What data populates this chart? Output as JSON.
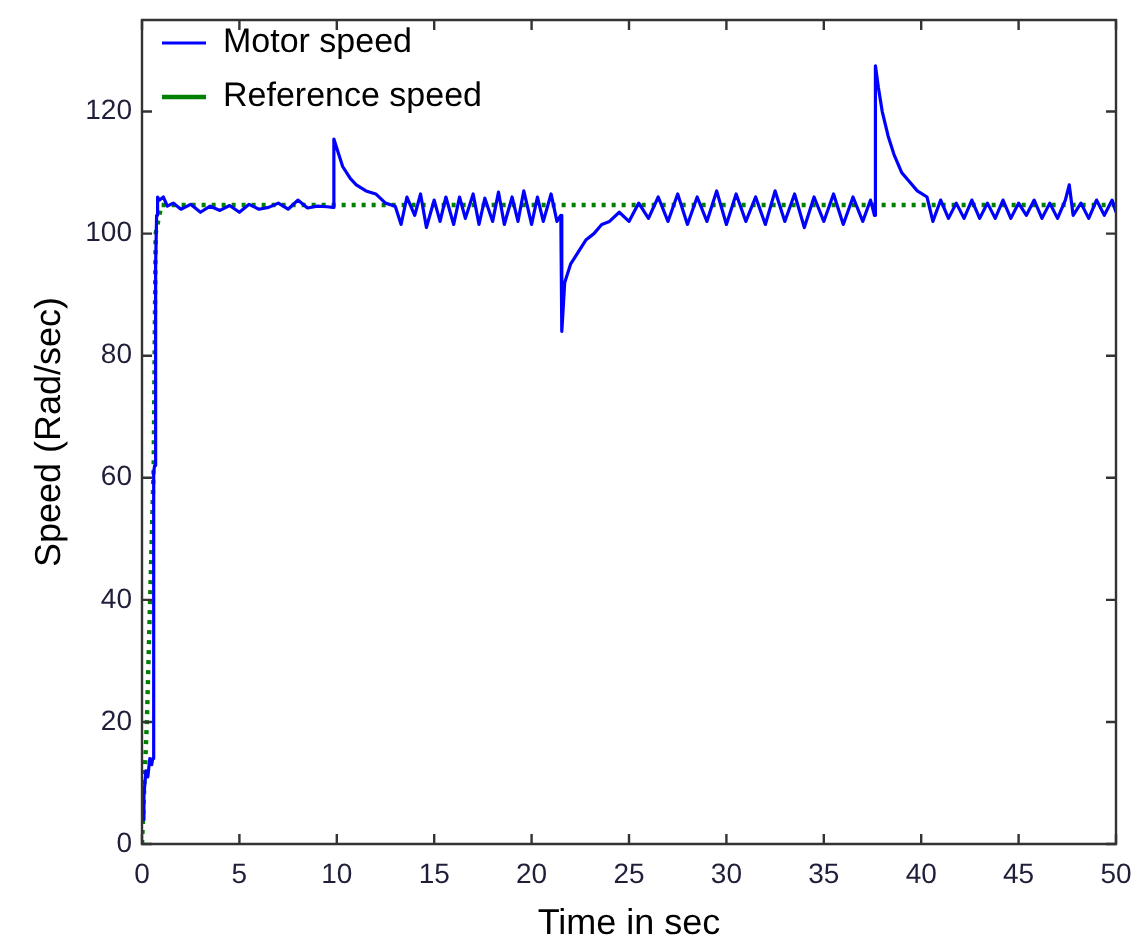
{
  "chart_data": {
    "type": "line",
    "xlabel": "Time in sec",
    "ylabel": "Speed (Rad/sec)",
    "xlim": [
      0,
      50
    ],
    "xticks": [
      0,
      5,
      10,
      15,
      20,
      25,
      30,
      35,
      40,
      45,
      50
    ],
    "ylim": [
      0,
      135
    ],
    "yticks": [
      0,
      20,
      40,
      60,
      80,
      100,
      120
    ],
    "grid": false,
    "legend": "top left",
    "series": [
      {
        "name": "Motor speed",
        "color": "#0000ff",
        "line_style": "solid",
        "x": [
          0,
          0.1,
          0.2,
          0.3,
          0.4,
          0.5,
          0.55,
          0.6,
          0.65,
          0.7,
          0.75,
          0.8,
          0.9,
          1.1,
          1.3,
          1.6,
          2,
          2.5,
          3,
          3.5,
          4,
          4.5,
          5,
          5.5,
          6,
          6.5,
          7,
          7.5,
          8,
          8.5,
          9,
          9.5,
          9.8,
          9.85,
          10,
          10.3,
          10.7,
          11,
          11.5,
          12,
          12.5,
          13,
          13.3,
          13.6,
          14,
          14.3,
          14.6,
          15,
          15.3,
          15.6,
          16,
          16.3,
          16.6,
          17,
          17.3,
          17.6,
          18,
          18.3,
          18.6,
          19,
          19.3,
          19.6,
          20,
          20.3,
          20.6,
          21,
          21.3,
          21.5,
          21.55,
          21.7,
          22,
          22.4,
          22.8,
          23.2,
          23.6,
          24,
          24.5,
          25,
          25.5,
          26,
          26.5,
          27,
          27.5,
          28,
          28.5,
          29,
          29.5,
          30,
          30.5,
          31,
          31.5,
          32,
          32.5,
          33,
          33.5,
          34,
          34.5,
          35,
          35.5,
          36,
          36.5,
          37,
          37.4,
          37.6,
          37.65,
          37.8,
          38,
          38.3,
          38.6,
          39,
          39.4,
          39.8,
          40.3,
          40.6,
          41,
          41.4,
          41.8,
          42.2,
          42.6,
          43,
          43.4,
          43.8,
          44.2,
          44.6,
          45,
          45.4,
          45.8,
          46.2,
          46.6,
          47,
          47.4,
          47.6,
          47.8,
          48.2,
          48.6,
          49,
          49.4,
          49.8,
          50
        ],
        "values": [
          4,
          8,
          12,
          11,
          14,
          13,
          14,
          61,
          62,
          95,
          103,
          106,
          105.5,
          106,
          104.5,
          105,
          104,
          104.8,
          103.5,
          104.5,
          103.8,
          104.6,
          103.5,
          104.8,
          104,
          104.3,
          105,
          104,
          105.5,
          104.2,
          104.5,
          104.4,
          104.3,
          115.5,
          114,
          111,
          109,
          108,
          107,
          106.5,
          105,
          104.5,
          101.5,
          106,
          103,
          106.5,
          101,
          105.5,
          102,
          106,
          101.5,
          106,
          102.5,
          106.5,
          101.5,
          105.8,
          102,
          106.8,
          101.5,
          106,
          102,
          107,
          101.5,
          106,
          102,
          106.5,
          102,
          103,
          84,
          92,
          95,
          97,
          99,
          100,
          101.5,
          102,
          103.5,
          102,
          105,
          102.5,
          106,
          102,
          106.5,
          101.5,
          106,
          102,
          107,
          101.5,
          106.5,
          102,
          106,
          101.5,
          107,
          102,
          106.5,
          101,
          106,
          102,
          106.5,
          101.5,
          106,
          102,
          105.5,
          103,
          127.5,
          124,
          120,
          116,
          113,
          110,
          108.5,
          107,
          106,
          102,
          105.5,
          102.5,
          105,
          102.5,
          105.5,
          102.5,
          105,
          102.5,
          105.5,
          102.5,
          105,
          103,
          105.5,
          102.5,
          105,
          102.5,
          105.5,
          108,
          103,
          105,
          102.5,
          105.5,
          103,
          105.5,
          103.5
        ]
      },
      {
        "name": "Reference speed",
        "color": "#008000",
        "line_style": "dotted",
        "x": [
          0,
          0.25,
          0.6,
          0.7,
          1,
          50
        ],
        "values": [
          0,
          20,
          62,
          100,
          104.7,
          104.7
        ]
      }
    ]
  }
}
